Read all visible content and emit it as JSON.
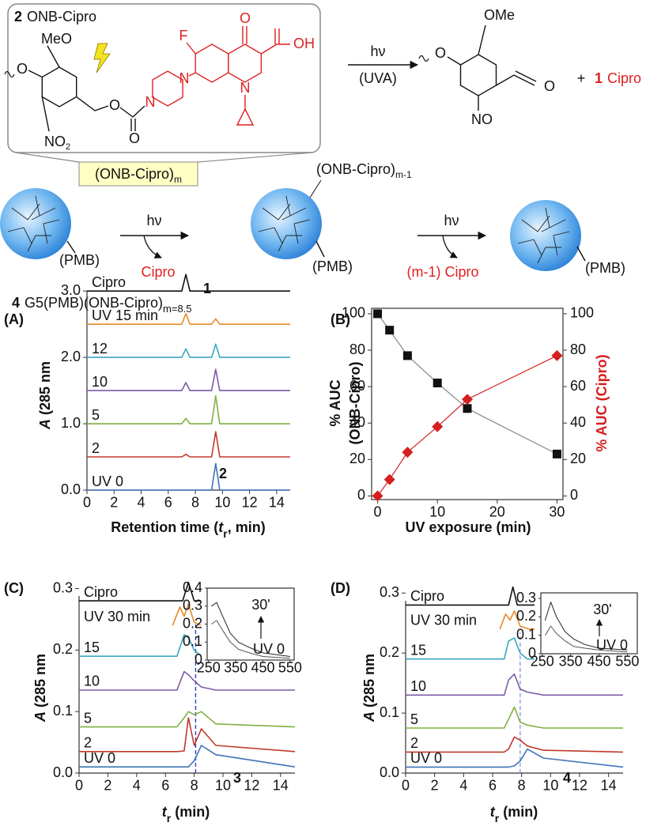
{
  "scheme": {
    "compound": {
      "number": "2",
      "name": "ONB-Cipro"
    },
    "reactant_atoms": [
      "MeO",
      "O",
      "NO",
      "2",
      "O",
      "O",
      "N",
      "N",
      "F",
      "O",
      "OH",
      "N"
    ],
    "arrow": {
      "top": "hν",
      "bottom": "(UVA)"
    },
    "product_atoms": [
      "OMe",
      "O",
      "O",
      "NO"
    ],
    "plus": "+",
    "released": {
      "number": "1",
      "name": "Cipro"
    },
    "dendrimer_start": {
      "payload": "(ONB-Cipro)",
      "payload_sub": "m",
      "core": "(PMB)"
    },
    "step1": {
      "arrow": "hν",
      "release": "Cipro"
    },
    "dendrimer_mid": {
      "payload": "(ONB-Cipro)",
      "payload_sub": "m-1",
      "core": "(PMB)"
    },
    "step2": {
      "arrow": "hν",
      "release": "(m-1) Cipro"
    },
    "dendrimer_end": {
      "core": "(PMB)"
    },
    "conjugate": {
      "number": "4",
      "name": "G5(PMB)(ONB-Cipro)",
      "sub": "m=8.5"
    }
  },
  "chart_data": [
    {
      "type": "line",
      "panel": "(A)",
      "xlim": [
        0,
        15
      ],
      "xticks": [
        0,
        2,
        4,
        6,
        8,
        10,
        12,
        14
      ],
      "ylim": [
        0,
        3.3
      ],
      "yticks": [
        {
          "value": 0,
          "label": "0.0"
        },
        {
          "value": 1,
          "label": "1.0"
        },
        {
          "value": 2,
          "label": "2.0"
        },
        {
          "value": 3,
          "label": "3.0"
        }
      ],
      "xlabel": [
        "Retention time (",
        "t",
        "r",
        ", min)"
      ],
      "ylabel": [
        "A",
        " (285 nm"
      ],
      "x": [
        0,
        7.0,
        7.3,
        7.6,
        9.2,
        9.5,
        9.8,
        15
      ],
      "series": [
        {
          "name": "Cipro",
          "color": "#111111",
          "values": [
            3.0,
            3.0,
            3.25,
            3.0,
            3.0,
            3.0,
            3.0,
            3.0
          ]
        },
        {
          "name": "UV 15 min",
          "color": "#e8892b",
          "values": [
            2.5,
            2.5,
            2.66,
            2.5,
            2.5,
            2.58,
            2.5,
            2.5
          ]
        },
        {
          "name": "12",
          "color": "#3aa6c0",
          "values": [
            2.0,
            2.0,
            2.13,
            2.0,
            2.0,
            2.2,
            2.0,
            2.0
          ]
        },
        {
          "name": "10",
          "color": "#7d5ba6",
          "values": [
            1.5,
            1.5,
            1.62,
            1.5,
            1.5,
            1.82,
            1.5,
            1.5
          ]
        },
        {
          "name": "5",
          "color": "#7fb041",
          "values": [
            1.0,
            1.0,
            1.08,
            1.0,
            1.0,
            1.42,
            1.0,
            1.0
          ]
        },
        {
          "name": "2",
          "color": "#c0392b",
          "values": [
            0.5,
            0.5,
            0.54,
            0.5,
            0.5,
            0.88,
            0.5,
            0.5
          ]
        },
        {
          "name": "UV 0",
          "color": "#3f75b8",
          "values": [
            0,
            0,
            0,
            0,
            0,
            0.4,
            0,
            0
          ]
        }
      ],
      "annotations": [
        "1",
        "2"
      ],
      "annotation_colors": [
        "#e02020",
        "#111111"
      ]
    },
    {
      "type": "line",
      "panel": "(B)",
      "xlim": [
        -1,
        31
      ],
      "xticks": [
        0,
        10,
        20,
        30
      ],
      "ylim": [
        -2,
        103
      ],
      "yticks": [
        0,
        20,
        40,
        60,
        80,
        100
      ],
      "y2lim": [
        -2,
        103
      ],
      "y2ticks": [
        0,
        20,
        40,
        60,
        80,
        100
      ],
      "xlabel": [
        "UV exposure (min)"
      ],
      "ylabel": [
        "% AUC",
        "(ONB-Cipro)"
      ],
      "y2label": [
        "% AUC (Cipro)"
      ],
      "y2label_color": "#d42020",
      "x": [
        0,
        2,
        5,
        10,
        15,
        30
      ],
      "series": [
        {
          "color": "#111111",
          "line_color": "#888888",
          "marker": "square",
          "values": [
            100,
            91,
            77,
            62,
            48,
            23
          ]
        },
        {
          "color": "#d42020",
          "marker": "diamond",
          "axis": "y2",
          "values": [
            0,
            9,
            24,
            38,
            53,
            77
          ]
        }
      ]
    },
    {
      "type": "line",
      "panel": "(C)",
      "xlim": [
        0,
        15
      ],
      "xticks": [
        0,
        2,
        4,
        6,
        8,
        10,
        12,
        14
      ],
      "ylim": [
        0,
        0.32
      ],
      "yticks": [
        {
          "value": 0,
          "label": "0.0"
        },
        0.1,
        0.2,
        0.3
      ],
      "xlabel": [
        "t",
        "r",
        " (min)"
      ],
      "ylabel": [
        "A",
        " (285 nm"
      ],
      "vline": 8.1,
      "vline_color": "#2a3fd0",
      "series": [
        {
          "name": "Cipro",
          "color": "#111111",
          "x": [
            0,
            7.2,
            7.6,
            8.0,
            9.5
          ],
          "values": [
            0.28,
            0.28,
            0.31,
            0.28,
            0.28
          ]
        },
        {
          "name": "UV 30 min",
          "color": "#e8892b",
          "x": [
            6.5,
            7.0,
            7.3,
            7.6,
            8.0,
            8.5,
            9.7
          ],
          "values": [
            0.24,
            0.27,
            0.255,
            0.275,
            0.245,
            0.24,
            0.24
          ]
        },
        {
          "name": "15",
          "color": "#3aa6c0",
          "x": [
            0,
            6.8,
            7.3,
            7.6,
            8.0,
            8.5,
            9.5,
            15
          ],
          "values": [
            0.19,
            0.19,
            0.225,
            0.22,
            0.2,
            0.19,
            0.19,
            0.19
          ]
        },
        {
          "name": "10",
          "color": "#7d5ba6",
          "x": [
            0,
            6.8,
            7.3,
            7.6,
            8.0,
            8.5,
            9.5,
            15
          ],
          "values": [
            0.135,
            0.135,
            0.165,
            0.16,
            0.15,
            0.14,
            0.135,
            0.135
          ]
        },
        {
          "name": "5",
          "color": "#7fb041",
          "x": [
            0,
            6.8,
            7.3,
            7.6,
            8.0,
            8.5,
            9.5,
            15
          ],
          "values": [
            0.075,
            0.075,
            0.09,
            0.1,
            0.095,
            0.1,
            0.08,
            0.075
          ]
        },
        {
          "name": "2",
          "color": "#c0392b",
          "x": [
            0,
            6.8,
            7.3,
            7.6,
            8.0,
            8.5,
            9.5,
            15
          ],
          "values": [
            0.035,
            0.035,
            0.036,
            0.09,
            0.045,
            0.072,
            0.045,
            0.035
          ]
        },
        {
          "name": "UV 0",
          "color": "#3f75b8",
          "x": [
            0,
            6.8,
            7.3,
            7.6,
            8.0,
            8.5,
            9.5,
            15
          ],
          "values": [
            0.01,
            0.01,
            0.01,
            0.01,
            0.02,
            0.045,
            0.03,
            0.01
          ]
        }
      ],
      "annotations": [
        "3"
      ],
      "annotation_colors": [
        "#111111"
      ]
    },
    {
      "type": "line",
      "xlim": [
        245,
        565
      ],
      "xticks": [
        250,
        350,
        450,
        550
      ],
      "ylim": [
        0,
        0.4
      ],
      "yticks": [
        0,
        0.1,
        0.2,
        0.3,
        0.4
      ],
      "x": [
        260,
        280,
        300,
        330,
        360,
        400,
        450,
        550
      ],
      "series": [
        {
          "color": "#222222",
          "values": [
            0.3,
            0.32,
            0.25,
            0.15,
            0.1,
            0.07,
            0.04,
            0.02
          ]
        },
        {
          "color": "#555555",
          "values": [
            0.2,
            0.22,
            0.17,
            0.1,
            0.06,
            0.04,
            0.02,
            0.01
          ]
        }
      ],
      "annotations": [
        "30'",
        "UV 0"
      ],
      "annotation_colors": [
        "#111111",
        "#111111"
      ]
    },
    {
      "type": "line",
      "panel": "(D)",
      "xlim": [
        0,
        15
      ],
      "xticks": [
        0,
        2,
        4,
        6,
        8,
        10,
        12,
        14
      ],
      "ylim": [
        0,
        0.32
      ],
      "yticks": [
        {
          "value": 0,
          "label": "0.0"
        },
        0.1,
        0.2,
        0.3
      ],
      "xlabel": [
        "t",
        "r",
        " (min)"
      ],
      "ylabel": [
        "A",
        " (285 nm"
      ],
      "vline": 7.9,
      "vline_color": "#8a9ee8",
      "series": [
        {
          "name": "Cipro",
          "color": "#111111",
          "x": [
            0,
            7.1,
            7.4,
            7.7,
            10.5
          ],
          "values": [
            0.28,
            0.28,
            0.31,
            0.28,
            0.28
          ]
        },
        {
          "name": "UV 30 min",
          "color": "#e8892b",
          "x": [
            6.5,
            6.9,
            7.2,
            7.5,
            7.9,
            8.5,
            9.7
          ],
          "values": [
            0.24,
            0.265,
            0.255,
            0.27,
            0.245,
            0.24,
            0.24
          ]
        },
        {
          "name": "15",
          "color": "#3aa6c0",
          "x": [
            0,
            6.8,
            7.1,
            7.5,
            7.9,
            8.4,
            9.5,
            15
          ],
          "values": [
            0.19,
            0.19,
            0.22,
            0.225,
            0.2,
            0.19,
            0.19,
            0.19
          ]
        },
        {
          "name": "10",
          "color": "#7d5ba6",
          "x": [
            0,
            6.8,
            7.1,
            7.5,
            7.9,
            8.4,
            9.5,
            15
          ],
          "values": [
            0.13,
            0.13,
            0.155,
            0.165,
            0.14,
            0.135,
            0.13,
            0.13
          ]
        },
        {
          "name": "5",
          "color": "#7fb041",
          "x": [
            0,
            6.8,
            7.1,
            7.5,
            7.9,
            8.4,
            9.5,
            15
          ],
          "values": [
            0.075,
            0.075,
            0.09,
            0.11,
            0.085,
            0.08,
            0.075,
            0.075
          ]
        },
        {
          "name": "2",
          "color": "#c0392b",
          "x": [
            0,
            6.8,
            7.1,
            7.5,
            7.9,
            8.4,
            9.5,
            15
          ],
          "values": [
            0.035,
            0.035,
            0.04,
            0.06,
            0.055,
            0.045,
            0.038,
            0.035
          ]
        },
        {
          "name": "UV 0",
          "color": "#3f75b8",
          "x": [
            0,
            6.8,
            7.1,
            7.5,
            7.9,
            8.4,
            9.5,
            15
          ],
          "values": [
            0.01,
            0.01,
            0.01,
            0.012,
            0.02,
            0.04,
            0.025,
            0.01
          ]
        }
      ],
      "annotations": [
        "4"
      ],
      "annotation_colors": [
        "#111111"
      ]
    },
    {
      "type": "line",
      "xlim": [
        245,
        585
      ],
      "xticks": [
        250,
        350,
        450,
        550
      ],
      "ylim": [
        0,
        0.33
      ],
      "yticks": [
        0,
        0.1,
        0.2,
        0.3
      ],
      "x": [
        260,
        280,
        300,
        330,
        360,
        400,
        450,
        550
      ],
      "series": [
        {
          "color": "#222222",
          "values": [
            0.18,
            0.28,
            0.2,
            0.12,
            0.08,
            0.05,
            0.03,
            0.02
          ]
        },
        {
          "color": "#555555",
          "values": [
            0.1,
            0.15,
            0.11,
            0.07,
            0.04,
            0.03,
            0.02,
            0.01
          ]
        }
      ],
      "annotations": [
        "30'",
        "UV 0"
      ],
      "annotation_colors": [
        "#111111",
        "#111111"
      ]
    }
  ]
}
